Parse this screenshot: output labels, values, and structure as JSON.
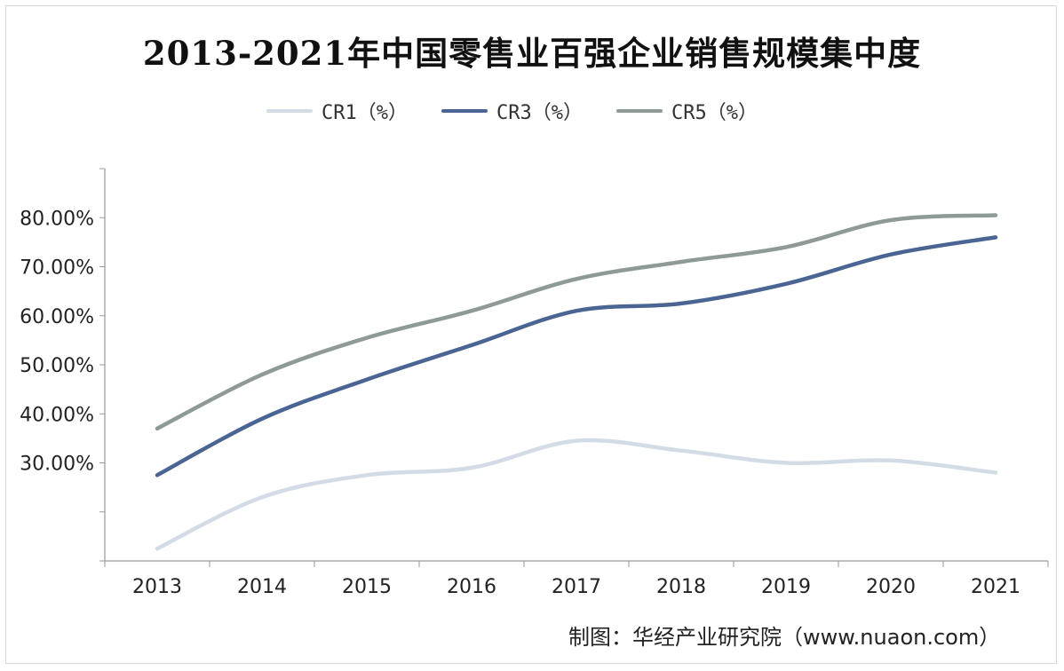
{
  "chart_data": {
    "type": "line",
    "title": "2013-2021年中国零售业百强企业销售规模集中度",
    "categories": [
      "2013",
      "2014",
      "2015",
      "2016",
      "2017",
      "2018",
      "2019",
      "2020",
      "2021"
    ],
    "y_ticks": [
      "",
      "",
      "30.00%",
      "40.00%",
      "50.00%",
      "60.00%",
      "70.00%",
      "80.00%",
      ""
    ],
    "ylim": [
      10,
      90
    ],
    "grid": false,
    "legend_position": "top",
    "series": [
      {
        "name": "CR1（%）",
        "color": "#d3dce6",
        "values": [
          12.5,
          23.0,
          27.5,
          29.0,
          34.5,
          32.5,
          30.0,
          30.5,
          28.0
        ]
      },
      {
        "name": "CR3（%）",
        "color": "#4a6593",
        "values": [
          27.5,
          39.0,
          47.0,
          54.0,
          61.0,
          62.5,
          66.5,
          72.5,
          76.0
        ]
      },
      {
        "name": "CR5（%）",
        "color": "#8e9a97",
        "values": [
          37.0,
          48.0,
          55.5,
          61.0,
          67.5,
          71.0,
          74.0,
          79.5,
          80.5
        ]
      }
    ]
  },
  "source_text": "制图：华经产业研究院（www.nuaon.com）"
}
